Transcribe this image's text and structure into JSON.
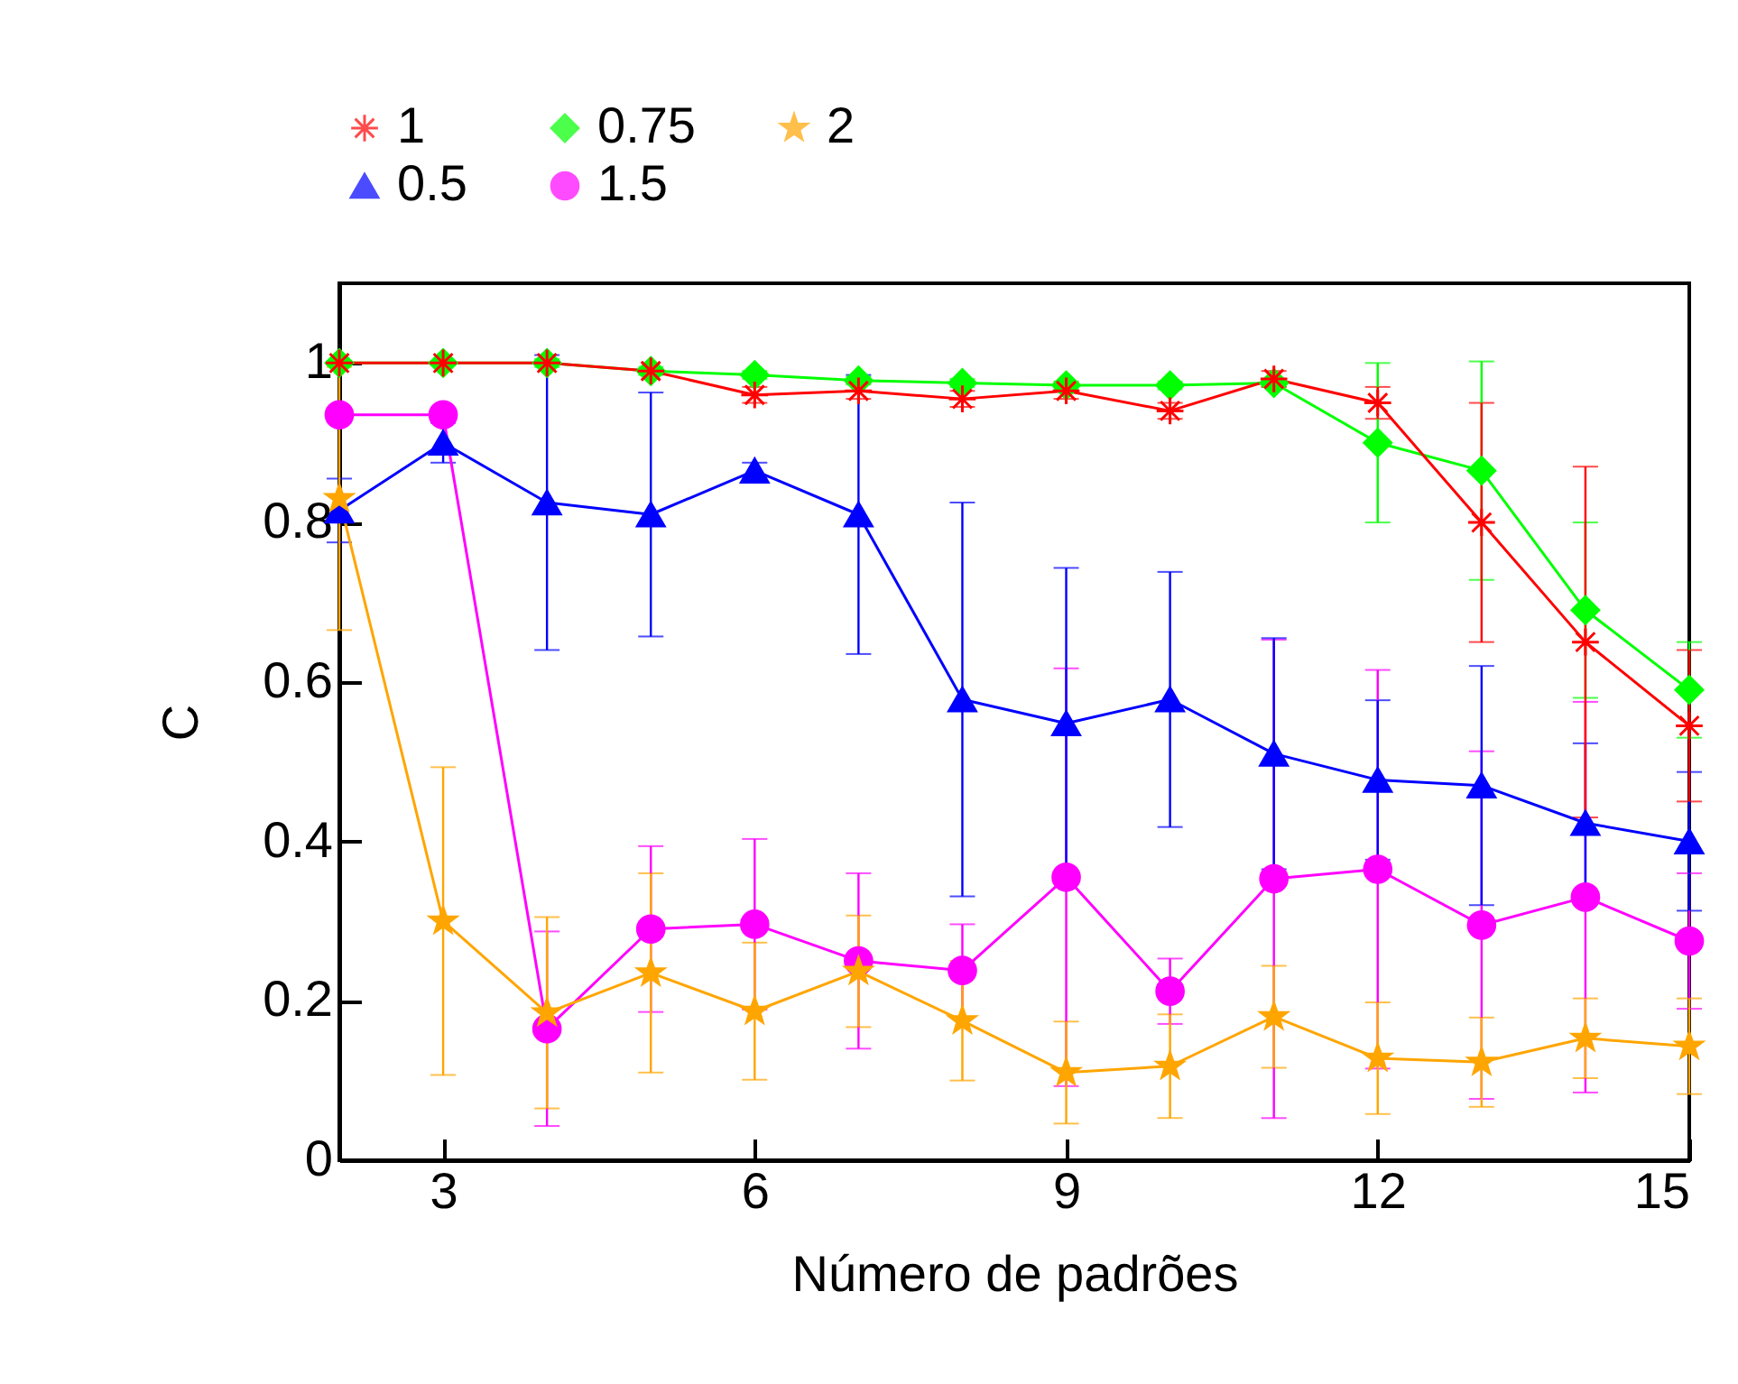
{
  "chart_data": {
    "type": "line",
    "xlabel": "Número de padrões",
    "ylabel": "C",
    "x": [
      2,
      3,
      4,
      5,
      6,
      7,
      8,
      9,
      10,
      11,
      12,
      13,
      14,
      15
    ],
    "xlim": [
      2,
      15
    ],
    "xticks": [
      3,
      6,
      9,
      12,
      15
    ],
    "ylim": [
      0,
      1.1
    ],
    "yticks": [
      0,
      0.2,
      0.4,
      0.6,
      0.8,
      1
    ],
    "grid": false,
    "legend": "top",
    "series": [
      {
        "name": "1",
        "color": "#ff0000",
        "marker": "cross",
        "values": [
          1.0,
          1.0,
          1.0,
          0.99,
          0.96,
          0.965,
          0.955,
          0.965,
          0.94,
          0.98,
          0.95,
          0.8,
          0.65,
          0.545
        ],
        "errors": [
          null,
          null,
          null,
          null,
          0.01,
          0.01,
          0.01,
          0.01,
          0.01,
          0.01,
          0.02,
          0.15,
          0.22,
          0.095
        ]
      },
      {
        "name": "0.75",
        "color": "#00ff00",
        "marker": "diamond",
        "values": [
          1.0,
          1.0,
          1.0,
          0.99,
          0.985,
          0.978,
          0.975,
          0.972,
          0.972,
          0.975,
          0.9,
          0.865,
          0.69,
          0.59
        ],
        "errors": [
          null,
          null,
          0.005,
          0.005,
          0.005,
          0.005,
          0.005,
          0.005,
          0.005,
          0.005,
          0.1,
          0.137,
          0.11,
          0.06
        ]
      },
      {
        "name": "2",
        "color": "#ffa500",
        "marker": "star",
        "values": [
          0.83,
          0.3,
          0.185,
          0.235,
          0.187,
          0.237,
          0.175,
          0.11,
          0.118,
          0.18,
          0.128,
          0.123,
          0.153,
          0.143
        ],
        "errors": [
          0.165,
          0.193,
          0.12,
          0.125,
          0.086,
          0.07,
          0.075,
          0.064,
          0.065,
          0.064,
          0.07,
          0.056,
          0.05,
          0.06
        ]
      },
      {
        "name": "0.5",
        "color": "#0000ff",
        "marker": "triangle",
        "values": [
          0.815,
          0.9,
          0.825,
          0.81,
          0.865,
          0.81,
          0.578,
          0.548,
          0.578,
          0.51,
          0.477,
          0.47,
          0.423,
          0.4
        ],
        "errors": [
          0.04,
          0.025,
          0.185,
          0.153,
          0.01,
          0.175,
          0.247,
          0.195,
          0.16,
          0.145,
          0.1,
          0.15,
          0.1,
          0.087
        ]
      },
      {
        "name": "1.5",
        "color": "#ff00ff",
        "marker": "circle",
        "values": [
          0.935,
          0.935,
          0.165,
          0.29,
          0.296,
          0.25,
          0.238,
          0.355,
          0.212,
          0.353,
          0.365,
          0.295,
          0.33,
          0.275
        ],
        "errors": [
          0.005,
          0.005,
          0.122,
          0.104,
          0.107,
          0.11,
          0.058,
          0.262,
          0.041,
          0.3,
          0.25,
          0.218,
          0.245,
          0.085
        ]
      }
    ]
  }
}
